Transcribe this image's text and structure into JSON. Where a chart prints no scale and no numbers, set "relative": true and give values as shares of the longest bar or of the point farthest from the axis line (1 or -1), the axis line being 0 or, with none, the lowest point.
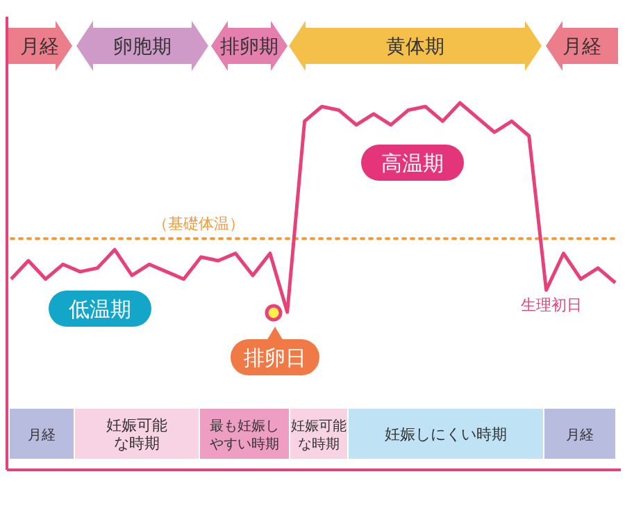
{
  "chart_data": {
    "type": "line",
    "relative": true,
    "categories": [
      null,
      null,
      null,
      null,
      null,
      null,
      null,
      null,
      null,
      null,
      null,
      null,
      null,
      null,
      null,
      null,
      null,
      null,
      null,
      null,
      null,
      null,
      null,
      null,
      null,
      null,
      null,
      null,
      null,
      null,
      null,
      null,
      null,
      null,
      null,
      null
    ],
    "series": [
      {
        "color": "#e8417a",
        "values": [
          0.52,
          0.57,
          0.52,
          0.56,
          0.54,
          0.55,
          0.6,
          0.53,
          0.56,
          0.54,
          0.52,
          0.58,
          0.57,
          0.59,
          0.53,
          0.59,
          0.43,
          0.95,
          0.99,
          0.98,
          0.94,
          0.97,
          0.94,
          0.98,
          0.99,
          0.95,
          1.0,
          0.96,
          0.92,
          0.95,
          0.91,
          0.49,
          0.59,
          0.52,
          0.55,
          0.51
        ]
      }
    ],
    "ref_lines": [
      {
        "axis": "y",
        "value": 0.63,
        "label": "（基礎体温）",
        "color": "#f39a3a",
        "line_style": "dotted"
      }
    ],
    "annotations": [
      "月経",
      "卵胞期",
      "排卵期",
      "黄体期",
      "月経",
      "高温期",
      "低温期",
      "排卵日",
      "生理初日",
      "月経",
      "妊娠可能な時期",
      "最も妊娠しやすい時期",
      "妊娠可能な時期",
      "妊娠しにくい時期",
      "月経"
    ]
  }
}
